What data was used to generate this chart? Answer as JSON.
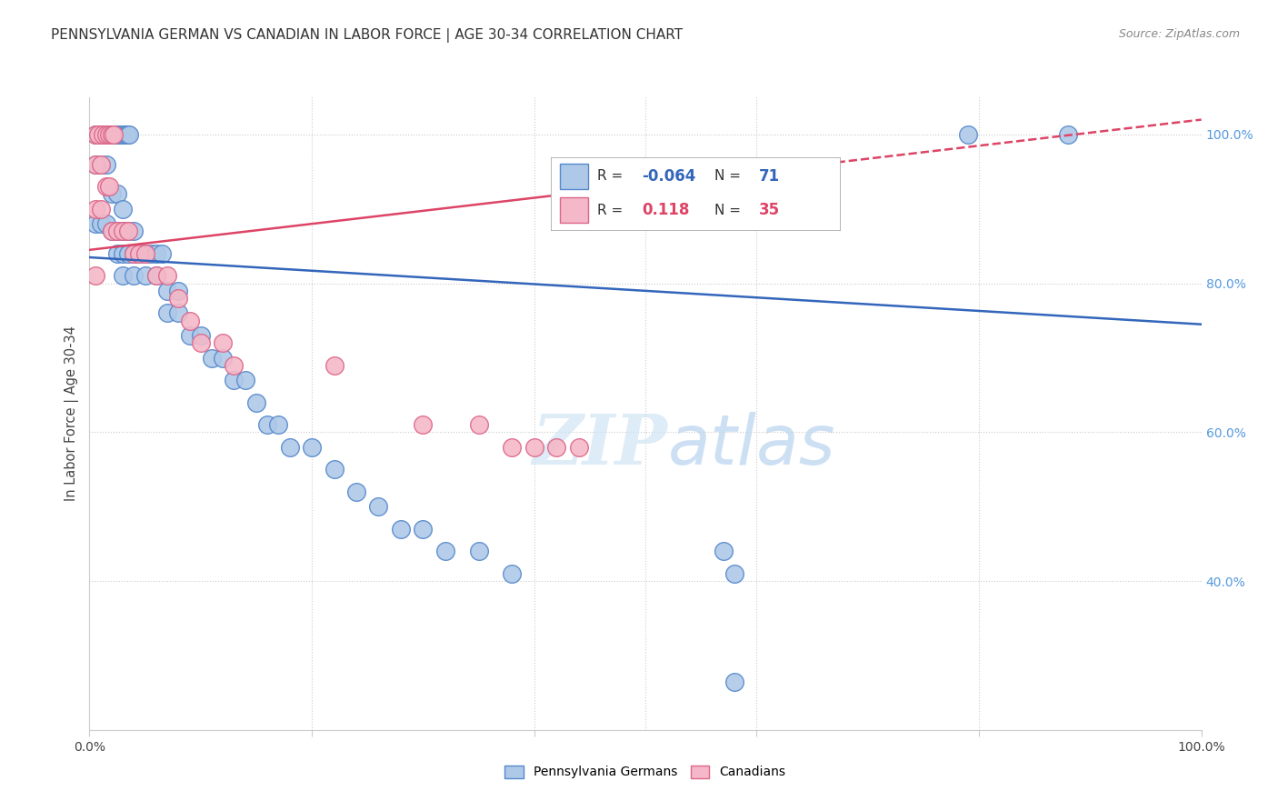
{
  "title": "PENNSYLVANIA GERMAN VS CANADIAN IN LABOR FORCE | AGE 30-34 CORRELATION CHART",
  "source": "Source: ZipAtlas.com",
  "ylabel": "In Labor Force | Age 30-34",
  "x_min": 0.0,
  "x_max": 1.0,
  "y_min": 0.2,
  "y_max": 1.05,
  "watermark": "ZIPatlas",
  "blue_R": "-0.064",
  "blue_N": "71",
  "pink_R": "0.118",
  "pink_N": "35",
  "blue_color": "#aec9e8",
  "pink_color": "#f4b8c8",
  "blue_edge_color": "#5588cc",
  "pink_edge_color": "#dd6688",
  "blue_line_color": "#3366bb",
  "pink_line_color": "#dd4466",
  "grid_color": "#cccccc",
  "right_tick_color": "#5599dd",
  "blue_line_y0": 0.835,
  "blue_line_y1": 0.745,
  "pink_line_y0": 0.845,
  "pink_line_y1": 1.02,
  "blue_points": [
    [
      0.005,
      1.0
    ],
    [
      0.008,
      1.0
    ],
    [
      0.01,
      1.0
    ],
    [
      0.012,
      1.0
    ],
    [
      0.014,
      1.0
    ],
    [
      0.016,
      1.0
    ],
    [
      0.018,
      1.0
    ],
    [
      0.02,
      1.0
    ],
    [
      0.022,
      1.0
    ],
    [
      0.024,
      1.0
    ],
    [
      0.026,
      1.0
    ],
    [
      0.028,
      1.0
    ],
    [
      0.03,
      1.0
    ],
    [
      0.032,
      1.0
    ],
    [
      0.034,
      1.0
    ],
    [
      0.036,
      1.0
    ],
    [
      0.005,
      0.96
    ],
    [
      0.01,
      0.96
    ],
    [
      0.015,
      0.96
    ],
    [
      0.02,
      0.92
    ],
    [
      0.025,
      0.92
    ],
    [
      0.03,
      0.9
    ],
    [
      0.005,
      0.88
    ],
    [
      0.01,
      0.88
    ],
    [
      0.015,
      0.88
    ],
    [
      0.02,
      0.87
    ],
    [
      0.025,
      0.87
    ],
    [
      0.03,
      0.87
    ],
    [
      0.035,
      0.87
    ],
    [
      0.04,
      0.87
    ],
    [
      0.025,
      0.84
    ],
    [
      0.03,
      0.84
    ],
    [
      0.035,
      0.84
    ],
    [
      0.04,
      0.84
    ],
    [
      0.045,
      0.84
    ],
    [
      0.05,
      0.84
    ],
    [
      0.055,
      0.84
    ],
    [
      0.06,
      0.84
    ],
    [
      0.065,
      0.84
    ],
    [
      0.03,
      0.81
    ],
    [
      0.04,
      0.81
    ],
    [
      0.05,
      0.81
    ],
    [
      0.06,
      0.81
    ],
    [
      0.07,
      0.79
    ],
    [
      0.08,
      0.79
    ],
    [
      0.07,
      0.76
    ],
    [
      0.08,
      0.76
    ],
    [
      0.09,
      0.73
    ],
    [
      0.1,
      0.73
    ],
    [
      0.11,
      0.7
    ],
    [
      0.12,
      0.7
    ],
    [
      0.13,
      0.67
    ],
    [
      0.14,
      0.67
    ],
    [
      0.15,
      0.64
    ],
    [
      0.16,
      0.61
    ],
    [
      0.17,
      0.61
    ],
    [
      0.18,
      0.58
    ],
    [
      0.2,
      0.58
    ],
    [
      0.22,
      0.55
    ],
    [
      0.24,
      0.52
    ],
    [
      0.26,
      0.5
    ],
    [
      0.28,
      0.47
    ],
    [
      0.3,
      0.47
    ],
    [
      0.32,
      0.44
    ],
    [
      0.35,
      0.44
    ],
    [
      0.38,
      0.41
    ],
    [
      0.57,
      0.44
    ],
    [
      0.58,
      0.41
    ],
    [
      0.79,
      1.0
    ],
    [
      0.88,
      1.0
    ],
    [
      0.58,
      0.265
    ]
  ],
  "pink_points": [
    [
      0.005,
      1.0
    ],
    [
      0.008,
      1.0
    ],
    [
      0.012,
      1.0
    ],
    [
      0.015,
      1.0
    ],
    [
      0.018,
      1.0
    ],
    [
      0.02,
      1.0
    ],
    [
      0.022,
      1.0
    ],
    [
      0.005,
      0.96
    ],
    [
      0.01,
      0.96
    ],
    [
      0.015,
      0.93
    ],
    [
      0.018,
      0.93
    ],
    [
      0.005,
      0.9
    ],
    [
      0.01,
      0.9
    ],
    [
      0.02,
      0.87
    ],
    [
      0.025,
      0.87
    ],
    [
      0.03,
      0.87
    ],
    [
      0.035,
      0.87
    ],
    [
      0.04,
      0.84
    ],
    [
      0.045,
      0.84
    ],
    [
      0.05,
      0.84
    ],
    [
      0.005,
      0.81
    ],
    [
      0.06,
      0.81
    ],
    [
      0.07,
      0.81
    ],
    [
      0.08,
      0.78
    ],
    [
      0.09,
      0.75
    ],
    [
      0.1,
      0.72
    ],
    [
      0.12,
      0.72
    ],
    [
      0.13,
      0.69
    ],
    [
      0.22,
      0.69
    ],
    [
      0.3,
      0.61
    ],
    [
      0.35,
      0.61
    ],
    [
      0.38,
      0.58
    ],
    [
      0.4,
      0.58
    ],
    [
      0.42,
      0.58
    ],
    [
      0.44,
      0.58
    ]
  ]
}
